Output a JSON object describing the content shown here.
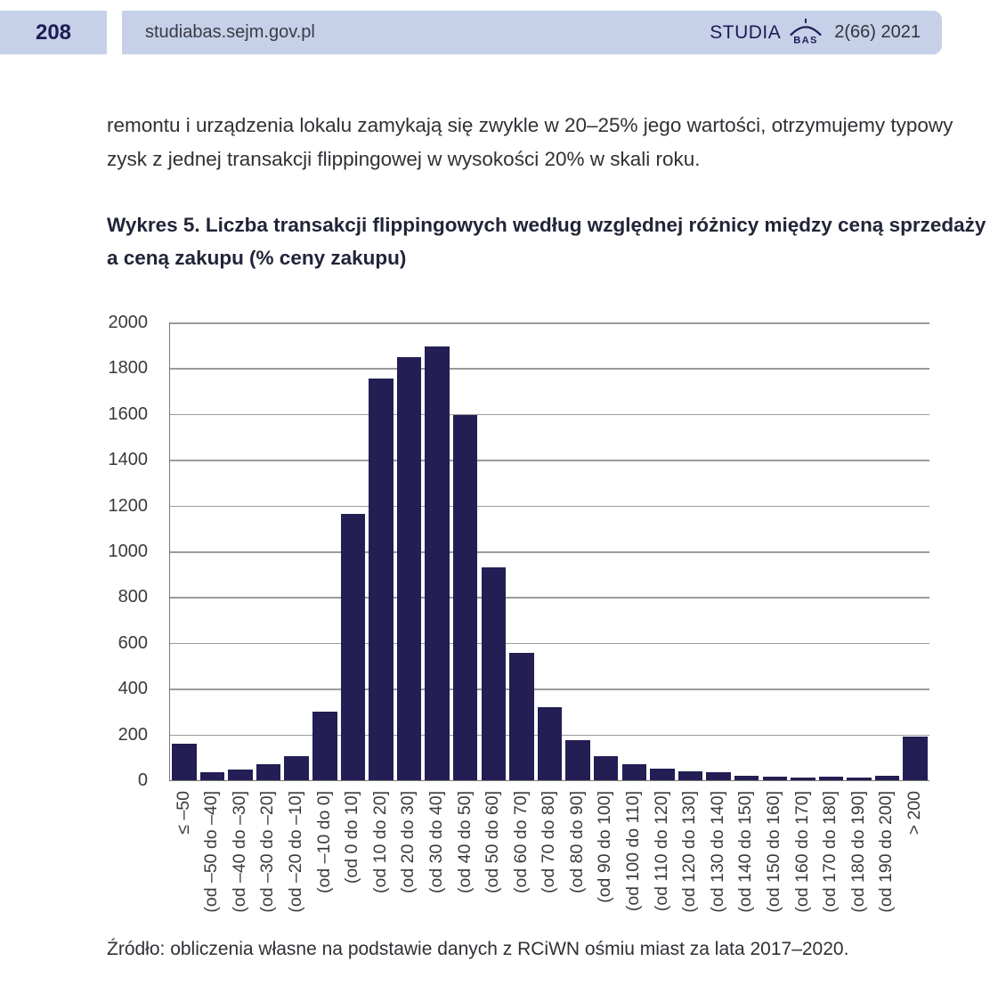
{
  "header": {
    "page_number": "208",
    "site": "studiabas.sejm.gov.pl",
    "journal": "STUDIA",
    "journal_logo": "BAS",
    "issue": "2(66) 2021"
  },
  "body": {
    "paragraph": "remontu i urządzenia lokalu zamykają się zwykle w 20–25% jego wartości, otrzymujemy typowy zysk z jednej transakcji flippingowej w wysokości 20% w skali roku."
  },
  "figure": {
    "title": "Wykres 5. Liczba transakcji flippingowych według względnej różnicy między ceną sprzedaży a ceną zakupu (% ceny zakupu)",
    "source": "Źródło: obliczenia własne na podstawie danych z RCiWN ośmiu miast za lata 2017–2020."
  },
  "colors": {
    "bar": "#231e53",
    "header_bg": "#c6d0e8",
    "accent_navy": "#1e1b54",
    "gridline": "#9b9b9b"
  },
  "chart_data": {
    "type": "bar",
    "title": "Liczba transakcji flippingowych według względnej różnicy między ceną sprzedaży a ceną zakupu (% ceny zakupu)",
    "xlabel": "",
    "ylabel": "",
    "ylim": [
      0,
      2000
    ],
    "ytick_step": 200,
    "grid": true,
    "legend": false,
    "categories": [
      "≤ –50",
      "(od –50 do –40]",
      "(od –40 do –30]",
      "(od –30 do –20]",
      "(od –20 do –10]",
      "(od –10 do 0]",
      "(od 0 do 10]",
      "(od 10 do 20]",
      "(od 20 do 30]",
      "(od 30 do 40]",
      "(od 40 do 50]",
      "(od 50 do 60]",
      "(od 60 do 70]",
      "(od 70 do 80]",
      "(od 80 do 90]",
      "(od 90 do 100]",
      "(od 100 do 110]",
      "(od 110 do 120]",
      "(od 120 do 130]",
      "(od 130 do 140]",
      "(od 140 do 150]",
      "(od 150 do 160]",
      "(od 160 do 170]",
      "(od 170 do 180]",
      "(od 180 do 190]",
      "(od 190 do 200]",
      "> 200"
    ],
    "values": [
      160,
      35,
      45,
      70,
      105,
      300,
      1165,
      1755,
      1850,
      1895,
      1595,
      930,
      555,
      320,
      175,
      105,
      70,
      50,
      38,
      34,
      20,
      14,
      13,
      15,
      10,
      20,
      190
    ]
  }
}
